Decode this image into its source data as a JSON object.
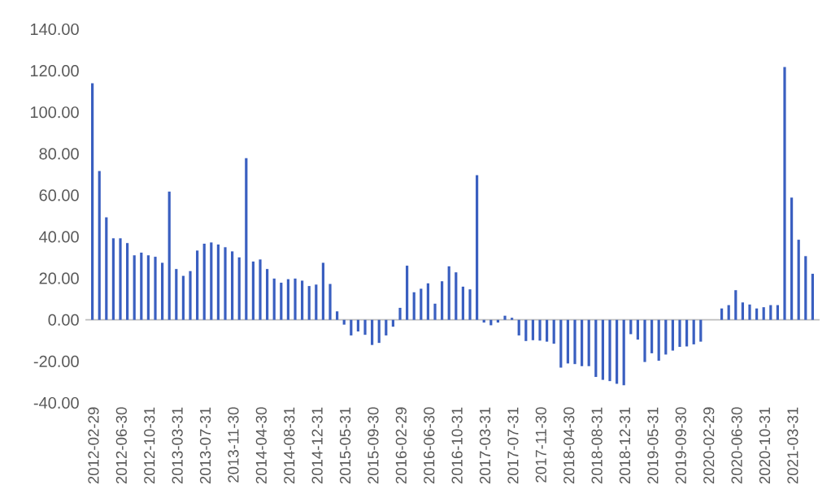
{
  "chart_data": {
    "type": "bar",
    "color": "#3a5fc0",
    "categories": [
      "2012-02-29",
      null,
      null,
      null,
      "2012-06-30",
      null,
      null,
      null,
      "2012-10-31",
      null,
      null,
      null,
      "2013-03-31",
      null,
      null,
      null,
      "2013-07-31",
      null,
      null,
      null,
      "2013-11-30",
      null,
      null,
      null,
      "2014-04-30",
      null,
      null,
      null,
      "2014-08-31",
      null,
      null,
      null,
      "2014-12-31",
      null,
      null,
      null,
      "2015-05-31",
      null,
      null,
      null,
      "2015-09-30",
      null,
      null,
      null,
      "2016-02-29",
      null,
      null,
      null,
      "2016-06-30",
      null,
      null,
      null,
      "2016-10-31",
      null,
      null,
      null,
      "2017-03-31",
      null,
      null,
      null,
      "2017-07-31",
      null,
      null,
      null,
      "2017-11-30",
      null,
      null,
      null,
      "2018-04-30",
      null,
      null,
      null,
      "2018-08-31",
      null,
      null,
      null,
      "2018-12-31",
      null,
      null,
      null,
      "2019-05-31",
      null,
      null,
      null,
      "2019-09-30",
      null,
      null,
      null,
      "2020-02-29",
      null,
      null,
      null,
      "2020-06-30",
      null,
      null,
      null,
      "2020-10-31",
      null,
      null,
      null,
      "2021-03-31",
      null,
      null,
      null
    ],
    "values": [
      114,
      71.7,
      49.4,
      39.3,
      39.3,
      37.0,
      31.1,
      32.4,
      31.1,
      30.4,
      27.5,
      61.8,
      24.5,
      21.2,
      23.5,
      33.4,
      36.7,
      37.3,
      36.3,
      35.0,
      33.0,
      30.1,
      77.9,
      28.1,
      29.1,
      24.5,
      19.9,
      17.9,
      19.6,
      19.9,
      18.9,
      16.3,
      17.0,
      27.5,
      17.3,
      4.1,
      -2.3,
      -7.5,
      -5.6,
      -7.2,
      -12.1,
      -11.1,
      -7.5,
      -3.3,
      5.8,
      26.1,
      13.3,
      15.0,
      17.6,
      7.8,
      18.6,
      25.8,
      22.9,
      16.0,
      14.7,
      69.7,
      -1.3,
      -2.6,
      -1.3,
      2.0,
      1.0,
      -7.5,
      -10.2,
      -9.8,
      -10.0,
      -10.5,
      -11.5,
      -23.0,
      -21.0,
      -21.3,
      -22.3,
      -22.3,
      -27.5,
      -28.9,
      -29.5,
      -30.8,
      -31.5,
      -6.9,
      -9.5,
      -20.3,
      -16.1,
      -19.7,
      -16.7,
      -14.8,
      -13.0,
      -12.8,
      -11.8,
      -10.5,
      0,
      0,
      5.5,
      7.1,
      14.3,
      8.4,
      7.4,
      5.5,
      6.1,
      7.1,
      7.1,
      121.8,
      58.9,
      38.6,
      30.7,
      22.2
    ],
    "ylim": [
      -40,
      140
    ],
    "yticks": [
      {
        "value": -40,
        "label": "-40.00"
      },
      {
        "value": -20,
        "label": "-20.00"
      },
      {
        "value": 0,
        "label": "0.00"
      },
      {
        "value": 20,
        "label": "20.00"
      },
      {
        "value": 40,
        "label": "40.00"
      },
      {
        "value": 60,
        "label": "60.00"
      },
      {
        "value": 80,
        "label": "80.00"
      },
      {
        "value": 100,
        "label": "100.00"
      },
      {
        "value": 120,
        "label": "120.00"
      },
      {
        "value": 140,
        "label": "140.00"
      }
    ]
  }
}
